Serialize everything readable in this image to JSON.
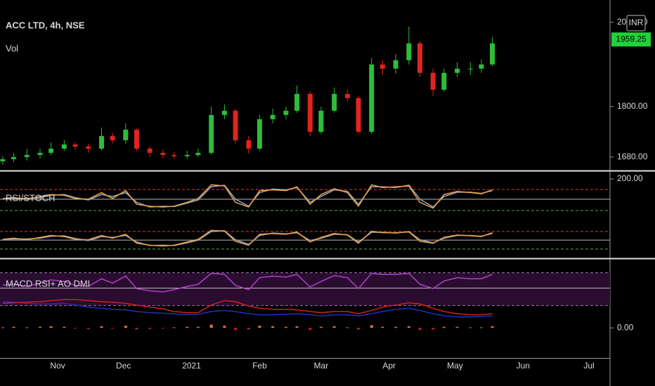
{
  "chart_data": [
    {
      "type": "candlestick",
      "title": "ACC LTD, 4h, NSE",
      "subtitle": "Vol",
      "currency": "INR",
      "last_price": 1959.25,
      "up_color": "#2ebd3a",
      "down_color": "#e0241e",
      "x": [
        6,
        11,
        17,
        23,
        28,
        34,
        39,
        45,
        51,
        56,
        62,
        67,
        73,
        79,
        84,
        90,
        95,
        101,
        107,
        112,
        118,
        123,
        129,
        135,
        140,
        146,
        151,
        157,
        163,
        168,
        174,
        179,
        185,
        191,
        196,
        202,
        207,
        213,
        219,
        224,
        229
      ],
      "open": [
        1670,
        1675,
        1680,
        1685,
        1690,
        1700,
        1710,
        1705,
        1700,
        1730,
        1720,
        1745,
        1700,
        1690,
        1685,
        1682,
        1685,
        1690,
        1780,
        1790,
        1720,
        1700,
        1770,
        1780,
        1790,
        1830,
        1740,
        1790,
        1830,
        1820,
        1740,
        1900,
        1890,
        1910,
        1950,
        1880,
        1840,
        1880,
        1890,
        1890,
        1900
      ],
      "high": [
        1682,
        1690,
        1700,
        1700,
        1715,
        1720,
        1716,
        1712,
        1750,
        1738,
        1760,
        1748,
        1705,
        1698,
        1692,
        1695,
        1700,
        1800,
        1805,
        1795,
        1730,
        1780,
        1795,
        1800,
        1850,
        1835,
        1800,
        1845,
        1840,
        1825,
        1915,
        1910,
        1925,
        1990,
        1955,
        1890,
        1890,
        1905,
        1905,
        1912,
        1965
      ],
      "low": [
        1662,
        1668,
        1672,
        1676,
        1684,
        1695,
        1698,
        1690,
        1695,
        1712,
        1712,
        1695,
        1680,
        1678,
        1675,
        1676,
        1680,
        1685,
        1770,
        1712,
        1688,
        1695,
        1760,
        1770,
        1785,
        1730,
        1735,
        1785,
        1812,
        1735,
        1735,
        1875,
        1878,
        1900,
        1870,
        1825,
        1835,
        1870,
        1875,
        1880,
        1895
      ],
      "close": [
        1675,
        1680,
        1685,
        1690,
        1700,
        1710,
        1705,
        1700,
        1730,
        1720,
        1745,
        1700,
        1690,
        1685,
        1682,
        1685,
        1690,
        1780,
        1790,
        1720,
        1700,
        1770,
        1780,
        1790,
        1830,
        1740,
        1790,
        1830,
        1820,
        1740,
        1900,
        1890,
        1910,
        1950,
        1880,
        1840,
        1880,
        1890,
        1890,
        1900,
        1950
      ],
      "xlim": [
        4.75,
        282.6
      ],
      "xticks": [
        {
          "value": 31,
          "label": "Nov"
        },
        {
          "value": 61,
          "label": "Dec"
        },
        {
          "value": 92,
          "label": "2021"
        },
        {
          "value": 123,
          "label": "Feb"
        },
        {
          "value": 151,
          "label": "Mar"
        },
        {
          "value": 182,
          "label": "Apr"
        },
        {
          "value": 212,
          "label": "May"
        },
        {
          "value": 243,
          "label": "Jun"
        },
        {
          "value": 273,
          "label": "Jul"
        }
      ],
      "ylim": [
        1648,
        2053
      ],
      "yticks": [
        {
          "value": 1680,
          "label": "1680.00"
        },
        {
          "value": 1800,
          "label": "1800.00"
        },
        {
          "value": 2000,
          "label": "2000.00"
        }
      ]
    },
    {
      "type": "line",
      "title": "RSI/STOCH",
      "x": [
        6,
        11,
        17,
        23,
        28,
        34,
        39,
        45,
        51,
        56,
        62,
        67,
        73,
        79,
        84,
        90,
        95,
        101,
        107,
        112,
        118,
        123,
        129,
        135,
        140,
        146,
        151,
        157,
        163,
        168,
        174,
        179,
        185,
        191,
        196,
        202,
        207,
        213,
        219,
        224,
        229
      ],
      "levels": [
        {
          "value": 173,
          "color": "#e53935",
          "dash": true
        },
        {
          "value": 148,
          "color": "#bbbbbb",
          "dash": false
        },
        {
          "value": 119,
          "color": "#4caf50",
          "dash": true
        },
        {
          "value": 65,
          "color": "#e53935",
          "dash": true
        },
        {
          "value": 43,
          "color": "#bbbbbb",
          "dash": false
        },
        {
          "value": 20,
          "color": "#4caf50",
          "dash": true
        }
      ],
      "series": [
        {
          "color": "#8fa8c8",
          "values": [
            148,
            150,
            150,
            152,
            158,
            160,
            152,
            146,
            160,
            155,
            165,
            140,
            128,
            130,
            129,
            138,
            146,
            180,
            184,
            148,
            130,
            165,
            174,
            172,
            178,
            140,
            155,
            172,
            168,
            135,
            180,
            180,
            178,
            184,
            148,
            128,
            155,
            166,
            166,
            163,
            170
          ]
        },
        {
          "color": "#f0a040",
          "values": [
            150,
            152,
            148,
            155,
            160,
            158,
            150,
            148,
            165,
            150,
            170,
            135,
            130,
            128,
            130,
            140,
            150,
            185,
            182,
            140,
            128,
            170,
            172,
            170,
            180,
            135,
            160,
            175,
            165,
            130,
            185,
            178,
            180,
            182,
            140,
            125,
            160,
            168,
            165,
            162,
            172
          ]
        },
        {
          "color": "#8fa8c8",
          "values": [
            44,
            46,
            46,
            48,
            53,
            54,
            47,
            42,
            52,
            50,
            55,
            38,
            29,
            30,
            29,
            36,
            43,
            65,
            67,
            44,
            32,
            55,
            61,
            59,
            62,
            42,
            48,
            58,
            57,
            38,
            63,
            63,
            61,
            65,
            44,
            36,
            48,
            55,
            55,
            53,
            60
          ]
        },
        {
          "color": "#f0a040",
          "values": [
            45,
            48,
            44,
            50,
            55,
            52,
            45,
            44,
            55,
            48,
            58,
            35,
            30,
            28,
            30,
            38,
            45,
            68,
            66,
            40,
            30,
            58,
            60,
            58,
            64,
            38,
            50,
            60,
            56,
            35,
            66,
            62,
            62,
            64,
            40,
            35,
            50,
            56,
            54,
            52,
            62
          ]
        }
      ],
      "ylim": [
        0,
        218
      ],
      "yticks": [
        {
          "value": 200,
          "label": "200.00"
        }
      ]
    },
    {
      "type": "line",
      "title": "MACD RSI+ AO DMI",
      "x": [
        6,
        11,
        17,
        23,
        28,
        34,
        39,
        45,
        51,
        56,
        62,
        67,
        73,
        79,
        84,
        90,
        95,
        101,
        107,
        112,
        118,
        123,
        129,
        135,
        140,
        146,
        151,
        157,
        163,
        168,
        174,
        179,
        185,
        191,
        196,
        202,
        207,
        213,
        219,
        224,
        229
      ],
      "band": [
        41,
        101
      ],
      "band_color": "#2a0c30",
      "levels": [
        {
          "value": 101,
          "color": "#9a7aa8",
          "dash": true
        },
        {
          "value": 73,
          "color": "#bbbbbb",
          "dash": false
        },
        {
          "value": 41,
          "color": "#9a7aa8",
          "dash": true
        }
      ],
      "series": [
        {
          "color": "#b040c8",
          "values": [
            78,
            80,
            76,
            82,
            88,
            85,
            78,
            76,
            90,
            82,
            95,
            72,
            68,
            66,
            70,
            76,
            80,
            100,
            98,
            78,
            70,
            92,
            95,
            93,
            98,
            75,
            85,
            96,
            92,
            72,
            100,
            98,
            98,
            100,
            80,
            72,
            86,
            92,
            90,
            90,
            98
          ]
        },
        {
          "color": "#2030c0",
          "values": [
            48,
            47,
            45,
            44,
            44,
            45,
            42,
            38,
            36,
            34,
            33,
            30,
            28,
            27,
            26,
            24,
            25,
            30,
            32,
            30,
            26,
            24,
            24,
            25,
            26,
            24,
            22,
            24,
            24,
            22,
            26,
            30,
            34,
            36,
            32,
            26,
            22,
            20,
            20,
            21,
            22
          ]
        },
        {
          "color": "#d02020",
          "values": [
            45,
            46,
            47,
            48,
            50,
            52,
            52,
            50,
            48,
            47,
            45,
            42,
            38,
            35,
            30,
            28,
            28,
            42,
            50,
            48,
            40,
            36,
            34,
            34,
            33,
            30,
            28,
            30,
            30,
            26,
            32,
            38,
            42,
            46,
            44,
            36,
            30,
            26,
            24,
            24,
            26
          ]
        },
        {
          "color": "#e07030",
          "style": "bar",
          "values": [
            1,
            2,
            1,
            2,
            3,
            2,
            -1,
            -2,
            3,
            -1,
            4,
            -3,
            -2,
            -1,
            1,
            2,
            2,
            6,
            4,
            -4,
            -3,
            4,
            3,
            2,
            3,
            -4,
            2,
            3,
            1,
            -3,
            5,
            2,
            2,
            3,
            -4,
            -3,
            2,
            2,
            1,
            1,
            3
          ]
        }
      ],
      "ylim": [
        -55,
        125
      ],
      "yticks": [
        {
          "value": 0,
          "label": "0.00"
        }
      ]
    }
  ]
}
